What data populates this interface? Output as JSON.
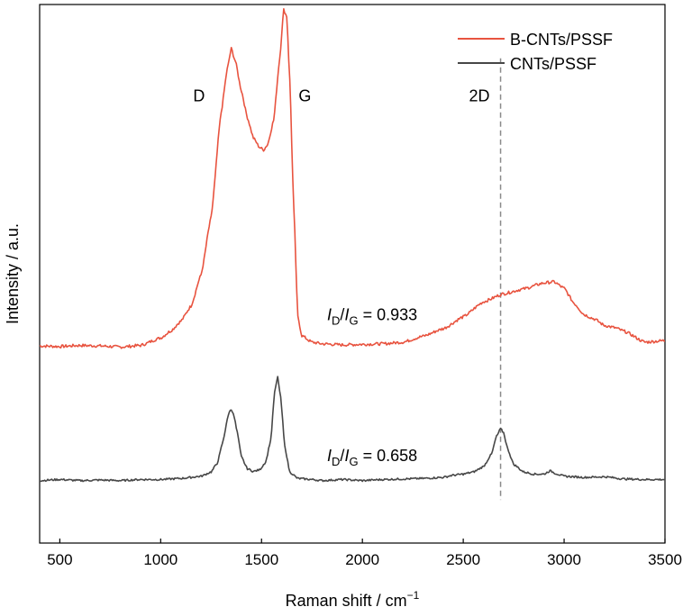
{
  "chart_data": {
    "type": "line",
    "xlabel": "Raman shift / cm",
    "xlabel_sup": "−1",
    "ylabel": "Intensity / a.u.",
    "xlim": [
      400,
      3500
    ],
    "ylim": [
      0,
      100
    ],
    "x_ticks": [
      500,
      1000,
      1500,
      2000,
      2500,
      3000,
      3500
    ],
    "y_ticks_shown": false,
    "legend_position": "top-right",
    "grid": false,
    "series": [
      {
        "name": "B-CNTs/PSSF",
        "color": "#e8533f",
        "points": [
          [
            400,
            36.6
          ],
          [
            500,
            36.5
          ],
          [
            600,
            36.7
          ],
          [
            700,
            36.6
          ],
          [
            800,
            36.4
          ],
          [
            900,
            36.7
          ],
          [
            1000,
            38.1
          ],
          [
            1050,
            39.4
          ],
          [
            1100,
            41.2
          ],
          [
            1150,
            44.0
          ],
          [
            1200,
            49.8
          ],
          [
            1250,
            60.5
          ],
          [
            1300,
            80.0
          ],
          [
            1330,
            88.0
          ],
          [
            1350,
            91.8
          ],
          [
            1370,
            89.5
          ],
          [
            1400,
            84.0
          ],
          [
            1430,
            79.0
          ],
          [
            1460,
            75.2
          ],
          [
            1490,
            73.5
          ],
          [
            1510,
            73.0
          ],
          [
            1530,
            74.0
          ],
          [
            1560,
            78.5
          ],
          [
            1590,
            90.0
          ],
          [
            1610,
            99.0
          ],
          [
            1625,
            97.8
          ],
          [
            1640,
            86.0
          ],
          [
            1660,
            62.0
          ],
          [
            1680,
            42.0
          ],
          [
            1700,
            38.5
          ],
          [
            1750,
            37.3
          ],
          [
            1800,
            37.0
          ],
          [
            1900,
            36.8
          ],
          [
            2000,
            36.9
          ],
          [
            2100,
            37.0
          ],
          [
            2200,
            37.3
          ],
          [
            2300,
            38.4
          ],
          [
            2400,
            39.8
          ],
          [
            2500,
            42.0
          ],
          [
            2600,
            44.8
          ],
          [
            2700,
            46.3
          ],
          [
            2800,
            47.2
          ],
          [
            2900,
            48.3
          ],
          [
            2950,
            48.5
          ],
          [
            3000,
            47.3
          ],
          [
            3050,
            44.5
          ],
          [
            3100,
            42.4
          ],
          [
            3150,
            41.6
          ],
          [
            3200,
            40.4
          ],
          [
            3250,
            40.0
          ],
          [
            3300,
            39.3
          ],
          [
            3400,
            37.3
          ],
          [
            3500,
            37.6
          ]
        ]
      },
      {
        "name": "CNTs/PSSF",
        "color": "#474747",
        "points": [
          [
            400,
            11.6
          ],
          [
            500,
            11.8
          ],
          [
            600,
            11.6
          ],
          [
            700,
            11.7
          ],
          [
            800,
            11.6
          ],
          [
            900,
            11.8
          ],
          [
            1000,
            11.8
          ],
          [
            1100,
            12.0
          ],
          [
            1200,
            12.4
          ],
          [
            1250,
            13.2
          ],
          [
            1280,
            14.8
          ],
          [
            1310,
            19.0
          ],
          [
            1330,
            23.0
          ],
          [
            1345,
            24.8
          ],
          [
            1360,
            24.2
          ],
          [
            1380,
            20.5
          ],
          [
            1400,
            16.0
          ],
          [
            1430,
            13.8
          ],
          [
            1460,
            13.3
          ],
          [
            1490,
            13.6
          ],
          [
            1520,
            15.0
          ],
          [
            1545,
            19.0
          ],
          [
            1565,
            28.0
          ],
          [
            1580,
            30.8
          ],
          [
            1595,
            27.0
          ],
          [
            1615,
            18.0
          ],
          [
            1640,
            13.2
          ],
          [
            1680,
            12.0
          ],
          [
            1750,
            11.8
          ],
          [
            1800,
            11.6
          ],
          [
            1900,
            11.8
          ],
          [
            2000,
            11.6
          ],
          [
            2100,
            11.8
          ],
          [
            2200,
            11.9
          ],
          [
            2300,
            12.0
          ],
          [
            2400,
            12.2
          ],
          [
            2450,
            12.6
          ],
          [
            2500,
            12.8
          ],
          [
            2550,
            13.2
          ],
          [
            2600,
            14.2
          ],
          [
            2640,
            16.5
          ],
          [
            2665,
            19.8
          ],
          [
            2685,
            21.2
          ],
          [
            2700,
            20.5
          ],
          [
            2720,
            17.5
          ],
          [
            2750,
            14.6
          ],
          [
            2800,
            13.2
          ],
          [
            2850,
            12.8
          ],
          [
            2900,
            12.8
          ],
          [
            2930,
            13.4
          ],
          [
            2960,
            12.9
          ],
          [
            3000,
            12.4
          ],
          [
            3100,
            12.2
          ],
          [
            3200,
            12.3
          ],
          [
            3300,
            11.9
          ],
          [
            3400,
            11.8
          ],
          [
            3500,
            11.8
          ]
        ]
      }
    ],
    "annotations": {
      "peak_d": {
        "text": "D",
        "x": 1190,
        "y": 82
      },
      "peak_g": {
        "text": "G",
        "x": 1715,
        "y": 82
      },
      "peak_2d": {
        "text": "2D",
        "x": 2580,
        "y": 82
      },
      "ratio_top": {
        "italic1": "I",
        "sub1": "D",
        "slash": "/",
        "italic2": "I",
        "sub2": "G",
        "value": " = 0.933",
        "x": 1825,
        "y": 41.4
      },
      "ratio_bottom": {
        "italic1": "I",
        "sub1": "D",
        "slash": "/",
        "italic2": "I",
        "sub2": "G",
        "value": " = 0.658",
        "x": 1825,
        "y": 15.2
      },
      "dashed_line_x": 2685,
      "dashed_line_y_range": [
        8,
        90
      ]
    }
  }
}
